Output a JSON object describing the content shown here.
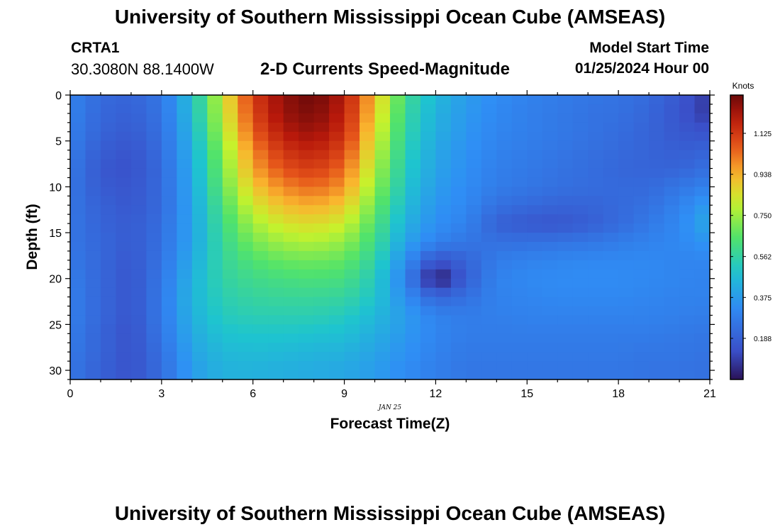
{
  "header": {
    "title": "University of Southern Mississippi Ocean Cube (AMSEAS)",
    "station": "CRTA1",
    "coords": "30.3080N  88.1400W",
    "subtitle": "2-D Currents Speed-Magnitude",
    "model_start_label": "Model Start Time",
    "model_start_value": "01/25/2024 Hour 00"
  },
  "footer": {
    "title": "University of Southern Mississippi Ocean Cube (AMSEAS)"
  },
  "chart_data": {
    "type": "heatmap",
    "title": "2-D Currents Speed-Magnitude",
    "xlabel": "Forecast Time(Z)",
    "ylabel": "Depth (ft)",
    "date_label": "JAN 25",
    "xlim": [
      0,
      21
    ],
    "ylim": [
      0,
      31
    ],
    "xticks": [
      0,
      3,
      6,
      9,
      12,
      15,
      18,
      21
    ],
    "yticks": [
      0,
      5,
      10,
      15,
      20,
      25,
      30
    ],
    "colorbar": {
      "label": "Knots",
      "range": [
        0,
        1.3
      ],
      "ticks": [
        "0.188",
        "0.375",
        "0.562",
        "0.750",
        "0.938",
        "1.125"
      ]
    },
    "depths_ft": [
      0,
      2,
      4,
      6,
      8,
      10,
      12,
      14,
      16,
      18,
      20,
      22,
      24,
      26,
      28,
      30
    ],
    "hours": [
      0,
      1,
      2,
      3,
      4,
      5,
      6,
      7,
      8,
      9,
      10,
      11,
      12,
      13,
      14,
      15,
      16,
      17,
      18,
      19,
      20,
      21
    ],
    "speed_knots": [
      [
        0.3,
        0.22,
        0.2,
        0.26,
        0.48,
        0.82,
        1.12,
        1.25,
        1.3,
        1.2,
        0.92,
        0.6,
        0.46,
        0.38,
        0.33,
        0.3,
        0.28,
        0.26,
        0.25,
        0.22,
        0.16,
        0.08
      ],
      [
        0.3,
        0.21,
        0.19,
        0.25,
        0.47,
        0.8,
        1.1,
        1.24,
        1.28,
        1.18,
        0.9,
        0.58,
        0.44,
        0.37,
        0.32,
        0.29,
        0.27,
        0.25,
        0.24,
        0.21,
        0.15,
        0.08
      ],
      [
        0.29,
        0.2,
        0.17,
        0.24,
        0.45,
        0.77,
        1.06,
        1.2,
        1.24,
        1.15,
        0.86,
        0.56,
        0.43,
        0.36,
        0.31,
        0.29,
        0.27,
        0.25,
        0.23,
        0.2,
        0.16,
        0.14
      ],
      [
        0.28,
        0.18,
        0.15,
        0.23,
        0.43,
        0.73,
        1.0,
        1.14,
        1.18,
        1.1,
        0.82,
        0.54,
        0.41,
        0.35,
        0.3,
        0.28,
        0.26,
        0.24,
        0.22,
        0.2,
        0.18,
        0.2
      ],
      [
        0.27,
        0.16,
        0.14,
        0.22,
        0.42,
        0.7,
        0.96,
        1.08,
        1.12,
        1.04,
        0.78,
        0.52,
        0.4,
        0.34,
        0.29,
        0.27,
        0.25,
        0.23,
        0.21,
        0.2,
        0.2,
        0.24
      ],
      [
        0.26,
        0.17,
        0.15,
        0.22,
        0.41,
        0.67,
        0.9,
        1.0,
        1.04,
        0.98,
        0.74,
        0.5,
        0.38,
        0.33,
        0.28,
        0.26,
        0.24,
        0.23,
        0.22,
        0.22,
        0.26,
        0.3
      ],
      [
        0.26,
        0.19,
        0.16,
        0.22,
        0.4,
        0.63,
        0.83,
        0.92,
        0.95,
        0.9,
        0.69,
        0.47,
        0.36,
        0.32,
        0.24,
        0.22,
        0.2,
        0.2,
        0.22,
        0.24,
        0.3,
        0.38
      ],
      [
        0.26,
        0.2,
        0.17,
        0.23,
        0.4,
        0.6,
        0.76,
        0.84,
        0.86,
        0.82,
        0.64,
        0.44,
        0.34,
        0.3,
        0.19,
        0.16,
        0.15,
        0.18,
        0.22,
        0.27,
        0.32,
        0.42
      ],
      [
        0.26,
        0.21,
        0.17,
        0.24,
        0.4,
        0.58,
        0.7,
        0.76,
        0.78,
        0.74,
        0.6,
        0.4,
        0.3,
        0.26,
        0.24,
        0.24,
        0.25,
        0.26,
        0.28,
        0.3,
        0.32,
        0.36
      ],
      [
        0.27,
        0.21,
        0.16,
        0.25,
        0.42,
        0.57,
        0.64,
        0.68,
        0.69,
        0.67,
        0.56,
        0.34,
        0.14,
        0.2,
        0.28,
        0.3,
        0.31,
        0.32,
        0.32,
        0.32,
        0.31,
        0.31
      ],
      [
        0.28,
        0.21,
        0.15,
        0.26,
        0.44,
        0.56,
        0.6,
        0.62,
        0.63,
        0.62,
        0.52,
        0.3,
        0.0,
        0.18,
        0.3,
        0.32,
        0.33,
        0.33,
        0.33,
        0.32,
        0.31,
        0.3
      ],
      [
        0.29,
        0.21,
        0.15,
        0.27,
        0.45,
        0.54,
        0.57,
        0.58,
        0.58,
        0.57,
        0.5,
        0.34,
        0.2,
        0.24,
        0.3,
        0.31,
        0.32,
        0.32,
        0.32,
        0.31,
        0.3,
        0.3
      ],
      [
        0.29,
        0.21,
        0.15,
        0.27,
        0.44,
        0.52,
        0.54,
        0.54,
        0.54,
        0.52,
        0.46,
        0.38,
        0.3,
        0.28,
        0.29,
        0.3,
        0.3,
        0.3,
        0.3,
        0.3,
        0.29,
        0.28
      ],
      [
        0.28,
        0.2,
        0.14,
        0.26,
        0.42,
        0.49,
        0.5,
        0.5,
        0.49,
        0.48,
        0.43,
        0.37,
        0.31,
        0.28,
        0.28,
        0.28,
        0.28,
        0.28,
        0.28,
        0.28,
        0.27,
        0.26
      ],
      [
        0.27,
        0.2,
        0.14,
        0.24,
        0.4,
        0.46,
        0.47,
        0.46,
        0.45,
        0.44,
        0.4,
        0.35,
        0.3,
        0.27,
        0.27,
        0.27,
        0.27,
        0.27,
        0.27,
        0.26,
        0.26,
        0.25
      ],
      [
        0.26,
        0.19,
        0.14,
        0.23,
        0.38,
        0.44,
        0.44,
        0.43,
        0.42,
        0.41,
        0.38,
        0.33,
        0.29,
        0.26,
        0.26,
        0.26,
        0.26,
        0.26,
        0.26,
        0.25,
        0.25,
        0.24
      ]
    ]
  }
}
